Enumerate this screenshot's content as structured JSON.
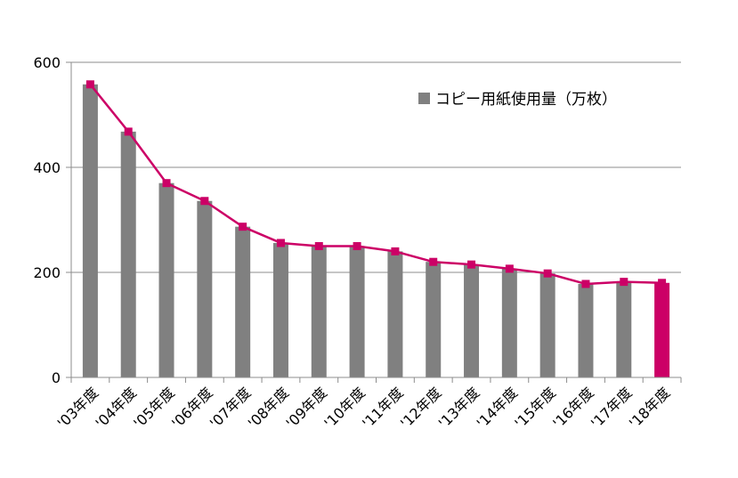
{
  "chart_data": {
    "type": "bar",
    "categories": [
      "'03年度",
      "'04年度",
      "'05年度",
      "'06年度",
      "'07年度",
      "'08年度",
      "'09年度",
      "'10年度",
      "'11年度",
      "'12年度",
      "'13年度",
      "'14年度",
      "'15年度",
      "'16年度",
      "'17年度",
      "'18年度"
    ],
    "series": [
      {
        "name": "コピー用紙使用量（万枚）",
        "kind": "bar",
        "values": [
          558,
          468,
          370,
          336,
          287,
          256,
          250,
          250,
          240,
          220,
          215,
          207,
          198,
          178,
          182,
          180
        ]
      },
      {
        "kind": "line",
        "values": [
          558,
          468,
          370,
          336,
          287,
          256,
          250,
          250,
          240,
          220,
          215,
          207,
          198,
          178,
          182,
          180
        ]
      }
    ],
    "ylim": [
      0,
      600
    ],
    "yticks": [
      0,
      200,
      400,
      600
    ],
    "grid": true,
    "legend_position": "top-right",
    "colors": {
      "bar": "#808080",
      "highlight_bar": "#cc0066",
      "line": "#cc0066",
      "marker": "#cc0066",
      "grid": "#8c8c8c",
      "axis": "#8c8c8c"
    },
    "highlight_index": 15
  }
}
